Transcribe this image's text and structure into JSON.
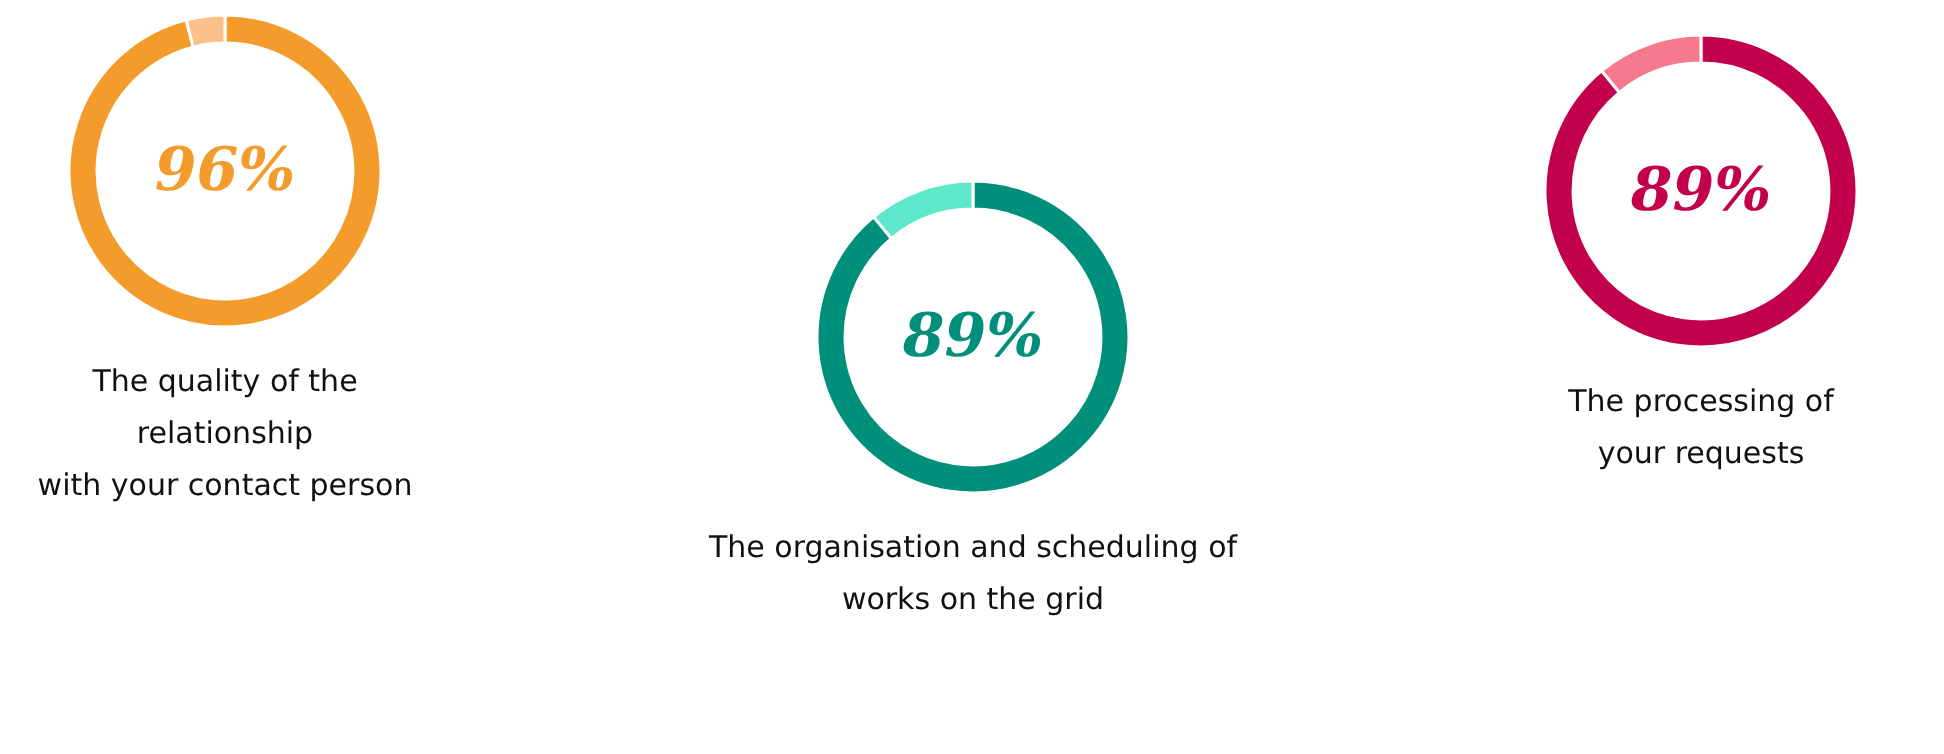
{
  "chart_data": [
    {
      "type": "donut",
      "title": "The quality of the\nrelationship\nwith your contact person",
      "categories": [
        null,
        null
      ],
      "values": [
        96,
        4
      ],
      "colors": [
        "#f39c2c",
        "#fcc18b"
      ],
      "annotations": [
        "96%"
      ]
    },
    {
      "type": "donut",
      "title": "The processing of\nyour requests",
      "categories": [
        null,
        null
      ],
      "values": [
        89,
        11
      ],
      "colors": [
        "#c2004b",
        "#f7798e"
      ],
      "annotations": [
        "89%"
      ]
    },
    {
      "type": "donut",
      "title": "The organisation and scheduling of\nworks on the grid",
      "categories": [
        null,
        null
      ],
      "values": [
        89,
        11
      ],
      "colors": [
        "#008f7a",
        "#5de8cc"
      ],
      "annotations": [
        "89%"
      ]
    }
  ]
}
